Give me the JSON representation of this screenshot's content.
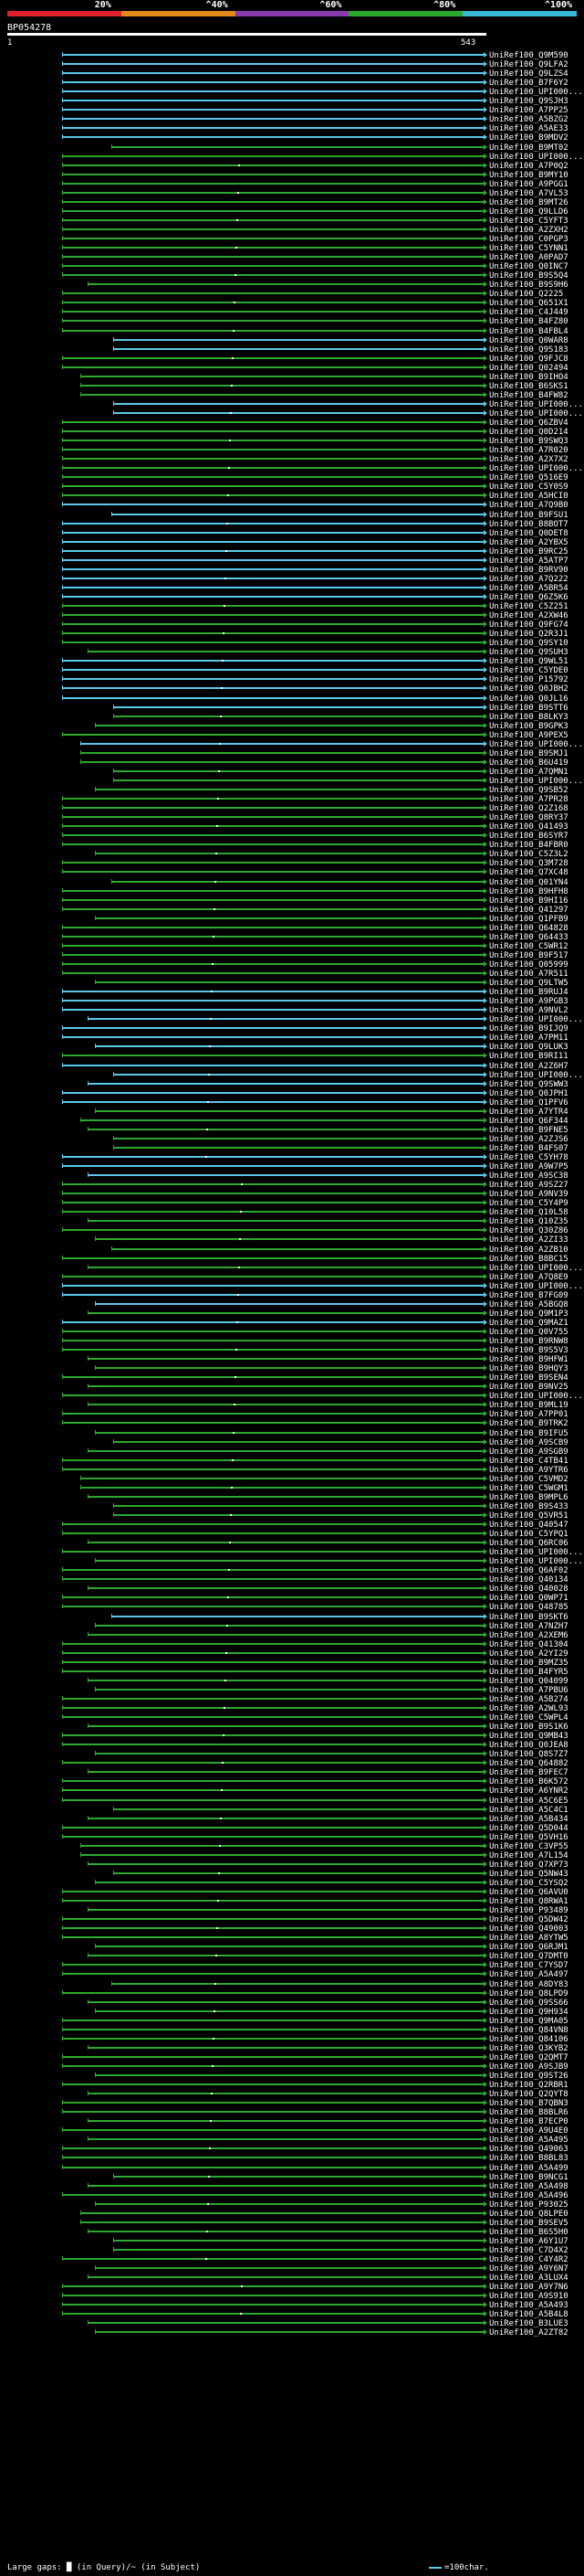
{
  "legend": {
    "segments": [
      {
        "label": "20%",
        "color": "#e0202a"
      },
      {
        "label": "^40%",
        "color": "#e08a1a"
      },
      {
        "label": "^60%",
        "color": "#8a3ab0"
      },
      {
        "label": "^80%",
        "color": "#2aa82a"
      },
      {
        "label": "^100%",
        "color": "#3ab8d8"
      }
    ]
  },
  "query": {
    "id": "BP054278",
    "start": "1",
    "end": "543"
  },
  "colors": {
    "green": "#2ea82e",
    "cyan": "#5bc8e8"
  },
  "hits": [
    "UniRef100_Q9M590",
    "UniRef100_Q9LFA2",
    "UniRef100_Q9LZS4",
    "UniRef100_B7F6Y2",
    "UniRef100_UPI000...",
    "UniRef100_Q9SJH3",
    "UniRef100_A7PP25",
    "UniRef100_A5BZG2",
    "UniRef100_A5AE33",
    "UniRef100_B9MDV2",
    "UniRef100_B9MT02",
    "UniRef100_UPI000...",
    "UniRef100_A7P0Q2",
    "UniRef100_B9MY10",
    "UniRef100_A9PGG1",
    "UniRef100_A7VL53",
    "UniRef100_B9MT26",
    "UniRef100_Q9LLD6",
    "UniRef100_C5YFT3",
    "UniRef100_A2ZXH2",
    "UniRef100_C0PGP3",
    "UniRef100_C5YNN1",
    "UniRef100_A0PAD7",
    "UniRef100_Q0INC7",
    "UniRef100_B9S5Q4",
    "UniRef100_B9S9H6",
    "UniRef100_Q2225",
    "UniRef100_Q651X1",
    "UniRef100_C4J449",
    "UniRef100_B4FZ80",
    "UniRef100_B4FBL4",
    "UniRef100_Q0WAR8",
    "UniRef100_Q9S183",
    "UniRef100_Q9FJC8",
    "UniRef100_Q02494",
    "UniRef100_B9IHO4",
    "UniRef100_B6SKS1",
    "UniRef100_B4FW82",
    "UniRef100_UPI000...",
    "UniRef100_UPI000...",
    "UniRef100_Q6ZBV4",
    "UniRef100_Q0D214",
    "UniRef100_B9SWQ3",
    "UniRef100_A7R020",
    "UniRef100_A2X7X2",
    "UniRef100_UPI000...",
    "UniRef100_Q516E9",
    "UniRef100_C5Y0S9",
    "UniRef100_A5HCI0",
    "UniRef100_A7Q9B0",
    "UniRef100_B9FSU1",
    "UniRef100_B8BOT7",
    "UniRef100_Q0DET8",
    "UniRef100_A2YBX5",
    "UniRef100_B9RC25",
    "UniRef100_A5ATP7",
    "UniRef100_B9RV90",
    "UniRef100_A7Q222",
    "UniRef100_A5BR54",
    "UniRef100_Q6Z5K6",
    "UniRef100_C5Z251",
    "UniRef100_A2XW46",
    "UniRef100_Q9FG74",
    "UniRef100_Q2R3J1",
    "UniRef100_Q9SY10",
    "UniRef100_Q9SUH3",
    "UniRef100_Q9WL51",
    "UniRef100_C5YDE0",
    "UniRef100_P15792",
    "UniRef100_Q0JBH2",
    "UniRef100_Q0JL16",
    "UniRef100_B9STT6",
    "UniRef100_B8LKY3",
    "UniRef100_B9GPK3",
    "UniRef100_A9PEX5",
    "UniRef100_UPI000...",
    "UniRef100_B9SMJ1",
    "UniRef100_B6U419",
    "UniRef100_A7QMN1",
    "UniRef100_UPI000...",
    "UniRef100_Q9SB52",
    "UniRef100_A7PR28",
    "UniRef100_Q2Z168",
    "UniRef100_Q8RY37",
    "UniRef100_Q41493",
    "UniRef100_B6SYR7",
    "UniRef100_B4FBR0",
    "UniRef100_C5Z3L2",
    "UniRef100_Q3M728",
    "UniRef100_Q7XC48",
    "UniRef100_Q01YN4",
    "UniRef100_B9HFH8",
    "UniRef100_B9HI16",
    "UniRef100_Q41297",
    "UniRef100_Q1PFB9",
    "UniRef100_Q64828",
    "UniRef100_Q64433",
    "UniRef100_C5WR12",
    "UniRef100_B9F517",
    "UniRef100_Q05999",
    "UniRef100_A7R511",
    "UniRef100_Q9LTW5",
    "UniRef100_B9RUJ4",
    "UniRef100_A9PGB3",
    "UniRef100_A9NVL2",
    "UniRef100_UPI000...",
    "UniRef100_B9IJQ9",
    "UniRef100_A7PM11",
    "UniRef100_Q9LUK3",
    "UniRef100_B9RI11",
    "UniRef100_A2Z6H7",
    "UniRef100_UPI000...",
    "UniRef100_Q9SWW3",
    "UniRef100_Q0JPH1",
    "UniRef100_Q1PFV6",
    "UniRef100_A7YTR4",
    "UniRef100_Q6F344",
    "UniRef100_B9FNE5",
    "UniRef100_A2ZJS6",
    "UniRef100_B4FS07",
    "UniRef100_C5YH78",
    "UniRef100_A9W7P5",
    "UniRef100_A9SC38",
    "UniRef100_A9SZ27",
    "UniRef100_A9NV39",
    "UniRef100_C5Y4P9",
    "UniRef100_Q10L58",
    "UniRef100_Q10Z35",
    "UniRef100_Q30Z86",
    "UniRef100_A2ZI33",
    "UniRef100_A2ZB10",
    "UniRef100_B8BC15",
    "UniRef100_UPI000...",
    "UniRef100_A7Q8E9",
    "UniRef100_UPI000...",
    "UniRef100_B7FG09",
    "UniRef100_A5BGQ8",
    "UniRef100_Q9M1P3",
    "UniRef100_Q9MAZ1",
    "UniRef100_Q0V755",
    "UniRef100_B9RNW8",
    "UniRef100_B9S5V3",
    "UniRef100_B9HFW1",
    "UniRef100_B9HQY3",
    "UniRef100_B9SEN4",
    "UniRef100_B9NV25",
    "UniRef100_UPI000...",
    "UniRef100_B9ML19",
    "UniRef100_A7PP01",
    "UniRef100_B9TRK2",
    "UniRef100_B9IFU5",
    "UniRef100_A9SCB9",
    "UniRef100_A9SGB9",
    "UniRef100_C4TB41",
    "UniRef100_A9YTR6",
    "UniRef100_C5VMD2",
    "UniRef100_C5WGM1",
    "UniRef100_B9MPL6",
    "UniRef100_B9S433",
    "UniRef100_Q5VR51",
    "UniRef100_Q40547",
    "UniRef100_C5YPQ1",
    "UniRef100_Q6RC06",
    "UniRef100_UPI000...",
    "UniRef100_UPI000...",
    "UniRef100_Q6AF02",
    "UniRef100_Q40134",
    "UniRef100_Q40028",
    "UniRef100_Q0WP71",
    "UniRef100_Q48785",
    "UniRef100_B9SKT6",
    "UniRef100_A7NZH7",
    "UniRef100_A2XEM6",
    "UniRef100_Q41304",
    "UniRef100_A2YI29",
    "UniRef100_B9MZ35",
    "UniRef100_B4FYR5",
    "UniRef100_Q04099",
    "UniRef100_A7PBU6",
    "UniRef100_A5B274",
    "UniRef100_A2WL93",
    "UniRef100_C5WPL4",
    "UniRef100_B9S1K6",
    "UniRef100_Q9MB43",
    "UniRef100_Q0JEA8",
    "UniRef100_Q8S7Z7",
    "UniRef100_Q64882",
    "UniRef100_B9FEC7",
    "UniRef100_B6K572",
    "UniRef100_A6YNR2",
    "UniRef100_A5C6E5",
    "UniRef100_A5C4C1",
    "UniRef100_A5B434",
    "UniRef100_Q5D044",
    "UniRef100_Q5VH16",
    "UniRef100_C3VP55",
    "UniRef100_A7L154",
    "UniRef100_Q7XP73",
    "UniRef100_Q5NW43",
    "UniRef100_C5YSQ2",
    "UniRef100_Q6AVU0",
    "UniRef100_Q8RWA1",
    "UniRef100_P93489",
    "UniRef100_Q5DW42",
    "UniRef100_Q49003",
    "UniRef100_A8YTW5",
    "UniRef100_Q6RJM1",
    "UniRef100_Q7DMT0",
    "UniRef100_C7YSD7",
    "UniRef100_A5A497",
    "UniRef100_A8DY83",
    "UniRef100_Q8LPD9",
    "UniRef100_Q9SS66",
    "UniRef100_Q9H934",
    "UniRef100_Q9MA05",
    "UniRef100_Q84VN8",
    "UniRef100_Q84106",
    "UniRef100_Q3KYB2",
    "UniRef100_Q2QMT7",
    "UniRef100_A9SJB9",
    "UniRef100_Q9ST26",
    "UniRef100_Q2RBR1",
    "UniRef100_Q2QYT8",
    "UniRef100_B7QBN3",
    "UniRef100_B8BLR6",
    "UniRef100_B7ECP0",
    "UniRef100_A9U4E0",
    "UniRef100_A5A495",
    "UniRef100_Q49063",
    "UniRef100_B8BL83",
    "UniRef100_A5A499",
    "UniRef100_B9NCG1",
    "UniRef100_A5A498",
    "UniRef100_A5A496",
    "UniRef100_P93025",
    "UniRef100_Q8LPE0",
    "UniRef100_B9SEV5",
    "UniRef100_B6S5H0",
    "UniRef100_A6Y1U7",
    "UniRef100_C7D4X2",
    "UniRef100_C4Y4R2",
    "UniRef100_A9Y6N7",
    "UniRef100_A3LUX4",
    "UniRef100_A9Y7N6",
    "UniRef100_A9S910",
    "UniRef100_A5A493",
    "UniRef100_A5B4L8",
    "UniRef100_B3LUE3",
    "UniRef100_A2ZT82"
  ],
  "footer": {
    "left": "Large gaps: █ (in Query)/~ (in Subject)",
    "right": "=100char."
  }
}
